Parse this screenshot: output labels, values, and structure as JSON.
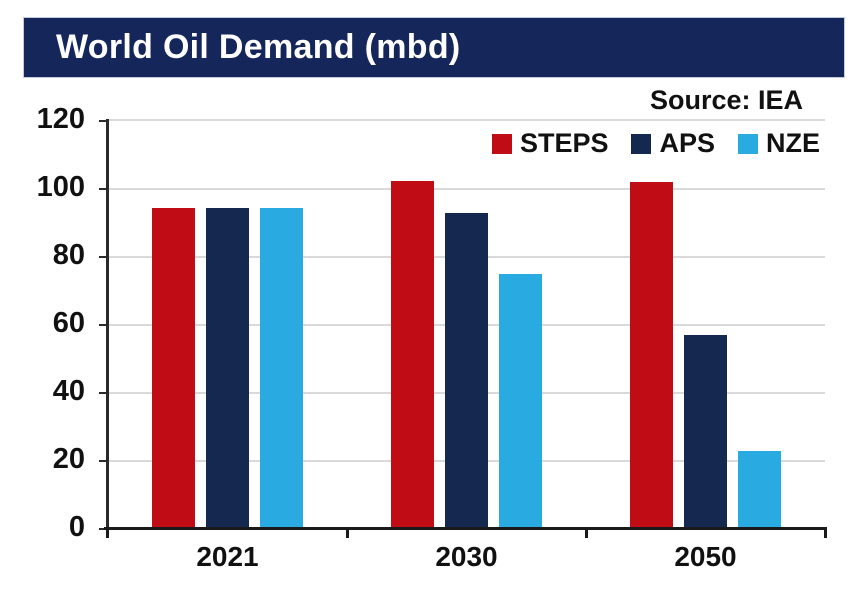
{
  "title_bar": {
    "text": "World Oil Demand (mbd)",
    "bg_color": "#14265A",
    "text_color": "#FFFFFF"
  },
  "source_note": "Source: IEA",
  "colors": {
    "steps_red": "#C00D15",
    "aps_navy": "#15284F",
    "nze_blue": "#29ABE2",
    "gridline": "#D9D9D9",
    "axis": "#1A1A1A",
    "text": "#111111"
  },
  "chart_data": {
    "type": "bar",
    "title": "World Oil Demand (mbd)",
    "source": "Source: IEA",
    "categories": [
      "2021",
      "2030",
      "2050"
    ],
    "series": [
      {
        "name": "STEPS",
        "color": "#C00D15",
        "values": [
          94.5,
          102.5,
          102
        ]
      },
      {
        "name": "APS",
        "color": "#15284F",
        "values": [
          94.5,
          93,
          57
        ]
      },
      {
        "name": "NZE",
        "color": "#29ABE2",
        "values": [
          94.5,
          75,
          23
        ]
      }
    ],
    "ylim": [
      0,
      120
    ],
    "yticks": [
      0,
      20,
      40,
      60,
      80,
      100,
      120
    ],
    "grid": true,
    "legend_position": "top-right"
  }
}
